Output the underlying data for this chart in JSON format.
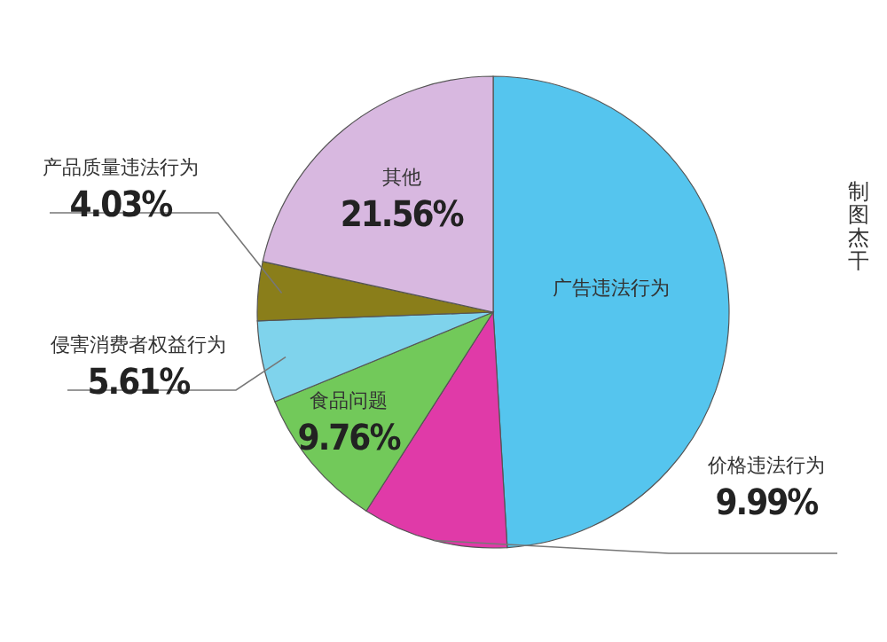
{
  "chart_data": {
    "type": "pie",
    "categories": [
      "广告违法行为",
      "价格违法行为",
      "食品问题",
      "侵害消费者权益行为",
      "产品质量违法行为",
      "其他"
    ],
    "values": [
      49.05,
      9.99,
      9.76,
      5.61,
      4.03,
      21.56
    ],
    "colors": [
      "#55c5ee",
      "#e03aa8",
      "#72c95a",
      "#7fd3ec",
      "#8a7e1a",
      "#d8b8e0"
    ],
    "value_labels": [
      null,
      "9.99%",
      "9.76%",
      "5.61%",
      "4.03%",
      "21.56%"
    ],
    "legend": false,
    "annotations": [
      "制图杰干"
    ]
  }
}
